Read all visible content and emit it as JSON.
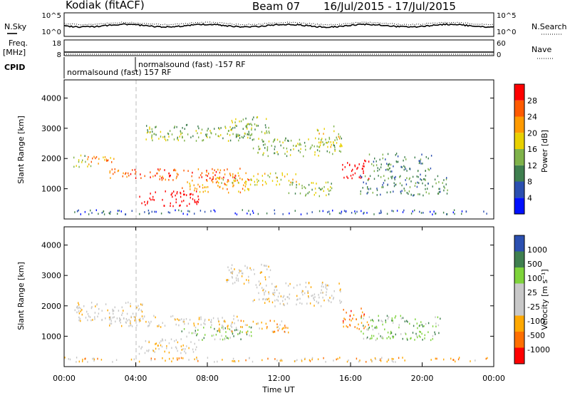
{
  "header": {
    "station": "Kodiak (fitACF)",
    "beam": "Beam 07",
    "dates": "16/Jul/2015 - 17/Jul/2015"
  },
  "left_labels": {
    "nsky": "N.Sky",
    "freq": "Freq.",
    "freq_unit": "[MHz]",
    "cpid": "CPID"
  },
  "right_labels": {
    "nsearch": "N.Search",
    "nave": "Nave"
  },
  "cpid_labels": {
    "first": "normalsound (fast) 157 RF",
    "second": "normalsound (fast) -157 RF"
  },
  "noise_panel": {
    "left_ticks": [
      "10^5",
      "10^0"
    ],
    "right_ticks": [
      "10^5",
      "10^0"
    ]
  },
  "freq_panel": {
    "left_ticks": [
      "18",
      "8"
    ],
    "right_ticks": [
      "60",
      "0"
    ]
  },
  "colors": {
    "power": [
      "#0010ff",
      "#2b4fb0",
      "#3f7f4f",
      "#7fb24a",
      "#e8d000",
      "#ff9a00",
      "#ff5a00",
      "#ff0000"
    ],
    "velocity": [
      "#ff0000",
      "#ff6f00",
      "#ffa800",
      "#cccccc",
      "#cccccc",
      "#7ed33b",
      "#3f7f4f",
      "#2b4fb0"
    ],
    "ground_scatter": "#c8c8c8"
  },
  "chart_data": [
    {
      "type": "heatmap",
      "name": "power",
      "ylabel": "Slant Range [km]",
      "yticks": [
        "1000",
        "2000",
        "3000",
        "4000"
      ],
      "ylim": [
        0,
        4600
      ],
      "colorbar_label": "Power [dB]",
      "colorbar_ticks": [
        "4",
        "8",
        "12",
        "16",
        "20",
        "24",
        "28"
      ],
      "clim": [
        0,
        32
      ],
      "features": [
        {
          "t0": 0.5,
          "t1": 1.5,
          "r0": 1750,
          "r1": 2150,
          "level": 3
        },
        {
          "t0": 1.0,
          "t1": 3.0,
          "r0": 1800,
          "r1": 2100,
          "level": 5
        },
        {
          "t0": 2.5,
          "t1": 10.5,
          "r0": 1300,
          "r1": 1700,
          "level": 6
        },
        {
          "t0": 4.0,
          "t1": 7.5,
          "r0": 450,
          "r1": 950,
          "level": 9
        },
        {
          "t0": 6.5,
          "t1": 10.5,
          "r0": 900,
          "r1": 1300,
          "level": 5
        },
        {
          "t0": 8.5,
          "t1": 13.0,
          "r0": 1150,
          "r1": 1550,
          "level": 4
        },
        {
          "t0": 4.5,
          "t1": 10.5,
          "r0": 2600,
          "r1": 3150,
          "level": 3
        },
        {
          "t0": 9.0,
          "t1": 11.5,
          "r0": 2700,
          "r1": 3400,
          "level": 3
        },
        {
          "t0": 10.5,
          "t1": 15.5,
          "r0": 2100,
          "r1": 2700,
          "level": 3
        },
        {
          "t0": 14.0,
          "t1": 15.5,
          "r0": 2400,
          "r1": 3100,
          "level": 4
        },
        {
          "t0": 12.5,
          "t1": 15.0,
          "r0": 750,
          "r1": 1250,
          "level": 3
        },
        {
          "t0": 15.5,
          "t1": 17.0,
          "r0": 1300,
          "r1": 2000,
          "level": 8
        },
        {
          "t0": 16.5,
          "t1": 21.5,
          "r0": 800,
          "r1": 1500,
          "level": 2
        },
        {
          "t0": 17.0,
          "t1": 20.5,
          "r0": 1600,
          "r1": 2200,
          "level": 2
        },
        {
          "t0": 0.0,
          "t1": 24.0,
          "r0": 180,
          "r1": 330,
          "level": 1
        }
      ]
    },
    {
      "type": "heatmap",
      "name": "velocity",
      "ylabel": "Slant Range [km]",
      "yticks": [
        "1000",
        "2000",
        "3000",
        "4000"
      ],
      "ylim": [
        0,
        4600
      ],
      "xlabel": "Time UT",
      "xticks": [
        "00:00",
        "04:00",
        "08:00",
        "12:00",
        "16:00",
        "20:00",
        "00:00"
      ],
      "xlim": [
        0,
        24
      ],
      "colorbar_label": "Velocity [m s⁻¹]",
      "colorbar_ticks": [
        "1000",
        "500",
        "100",
        "25",
        "-25",
        "-100",
        "-500",
        "-1000"
      ],
      "features": [
        {
          "t0": 0.5,
          "t1": 4.5,
          "r0": 1500,
          "r1": 2150,
          "level": 3
        },
        {
          "t0": 2.5,
          "t1": 10.0,
          "r0": 1300,
          "r1": 1700,
          "level": 3
        },
        {
          "t0": 4.0,
          "t1": 7.5,
          "r0": 450,
          "r1": 950,
          "level": 3
        },
        {
          "t0": 6.5,
          "t1": 10.5,
          "r0": 900,
          "r1": 1350,
          "level": 5
        },
        {
          "t0": 8.5,
          "t1": 12.5,
          "r0": 1150,
          "r1": 1550,
          "level": 2
        },
        {
          "t0": 9.0,
          "t1": 11.5,
          "r0": 2700,
          "r1": 3400,
          "level": 3
        },
        {
          "t0": 10.5,
          "t1": 15.5,
          "r0": 2000,
          "r1": 2800,
          "level": 3
        },
        {
          "t0": 15.5,
          "t1": 17.0,
          "r0": 1250,
          "r1": 1950,
          "level": 1
        },
        {
          "t0": 16.5,
          "t1": 21.0,
          "r0": 900,
          "r1": 1700,
          "level": 5
        },
        {
          "t0": 0.0,
          "t1": 24.0,
          "r0": 180,
          "r1": 330,
          "level": 2
        }
      ]
    }
  ]
}
